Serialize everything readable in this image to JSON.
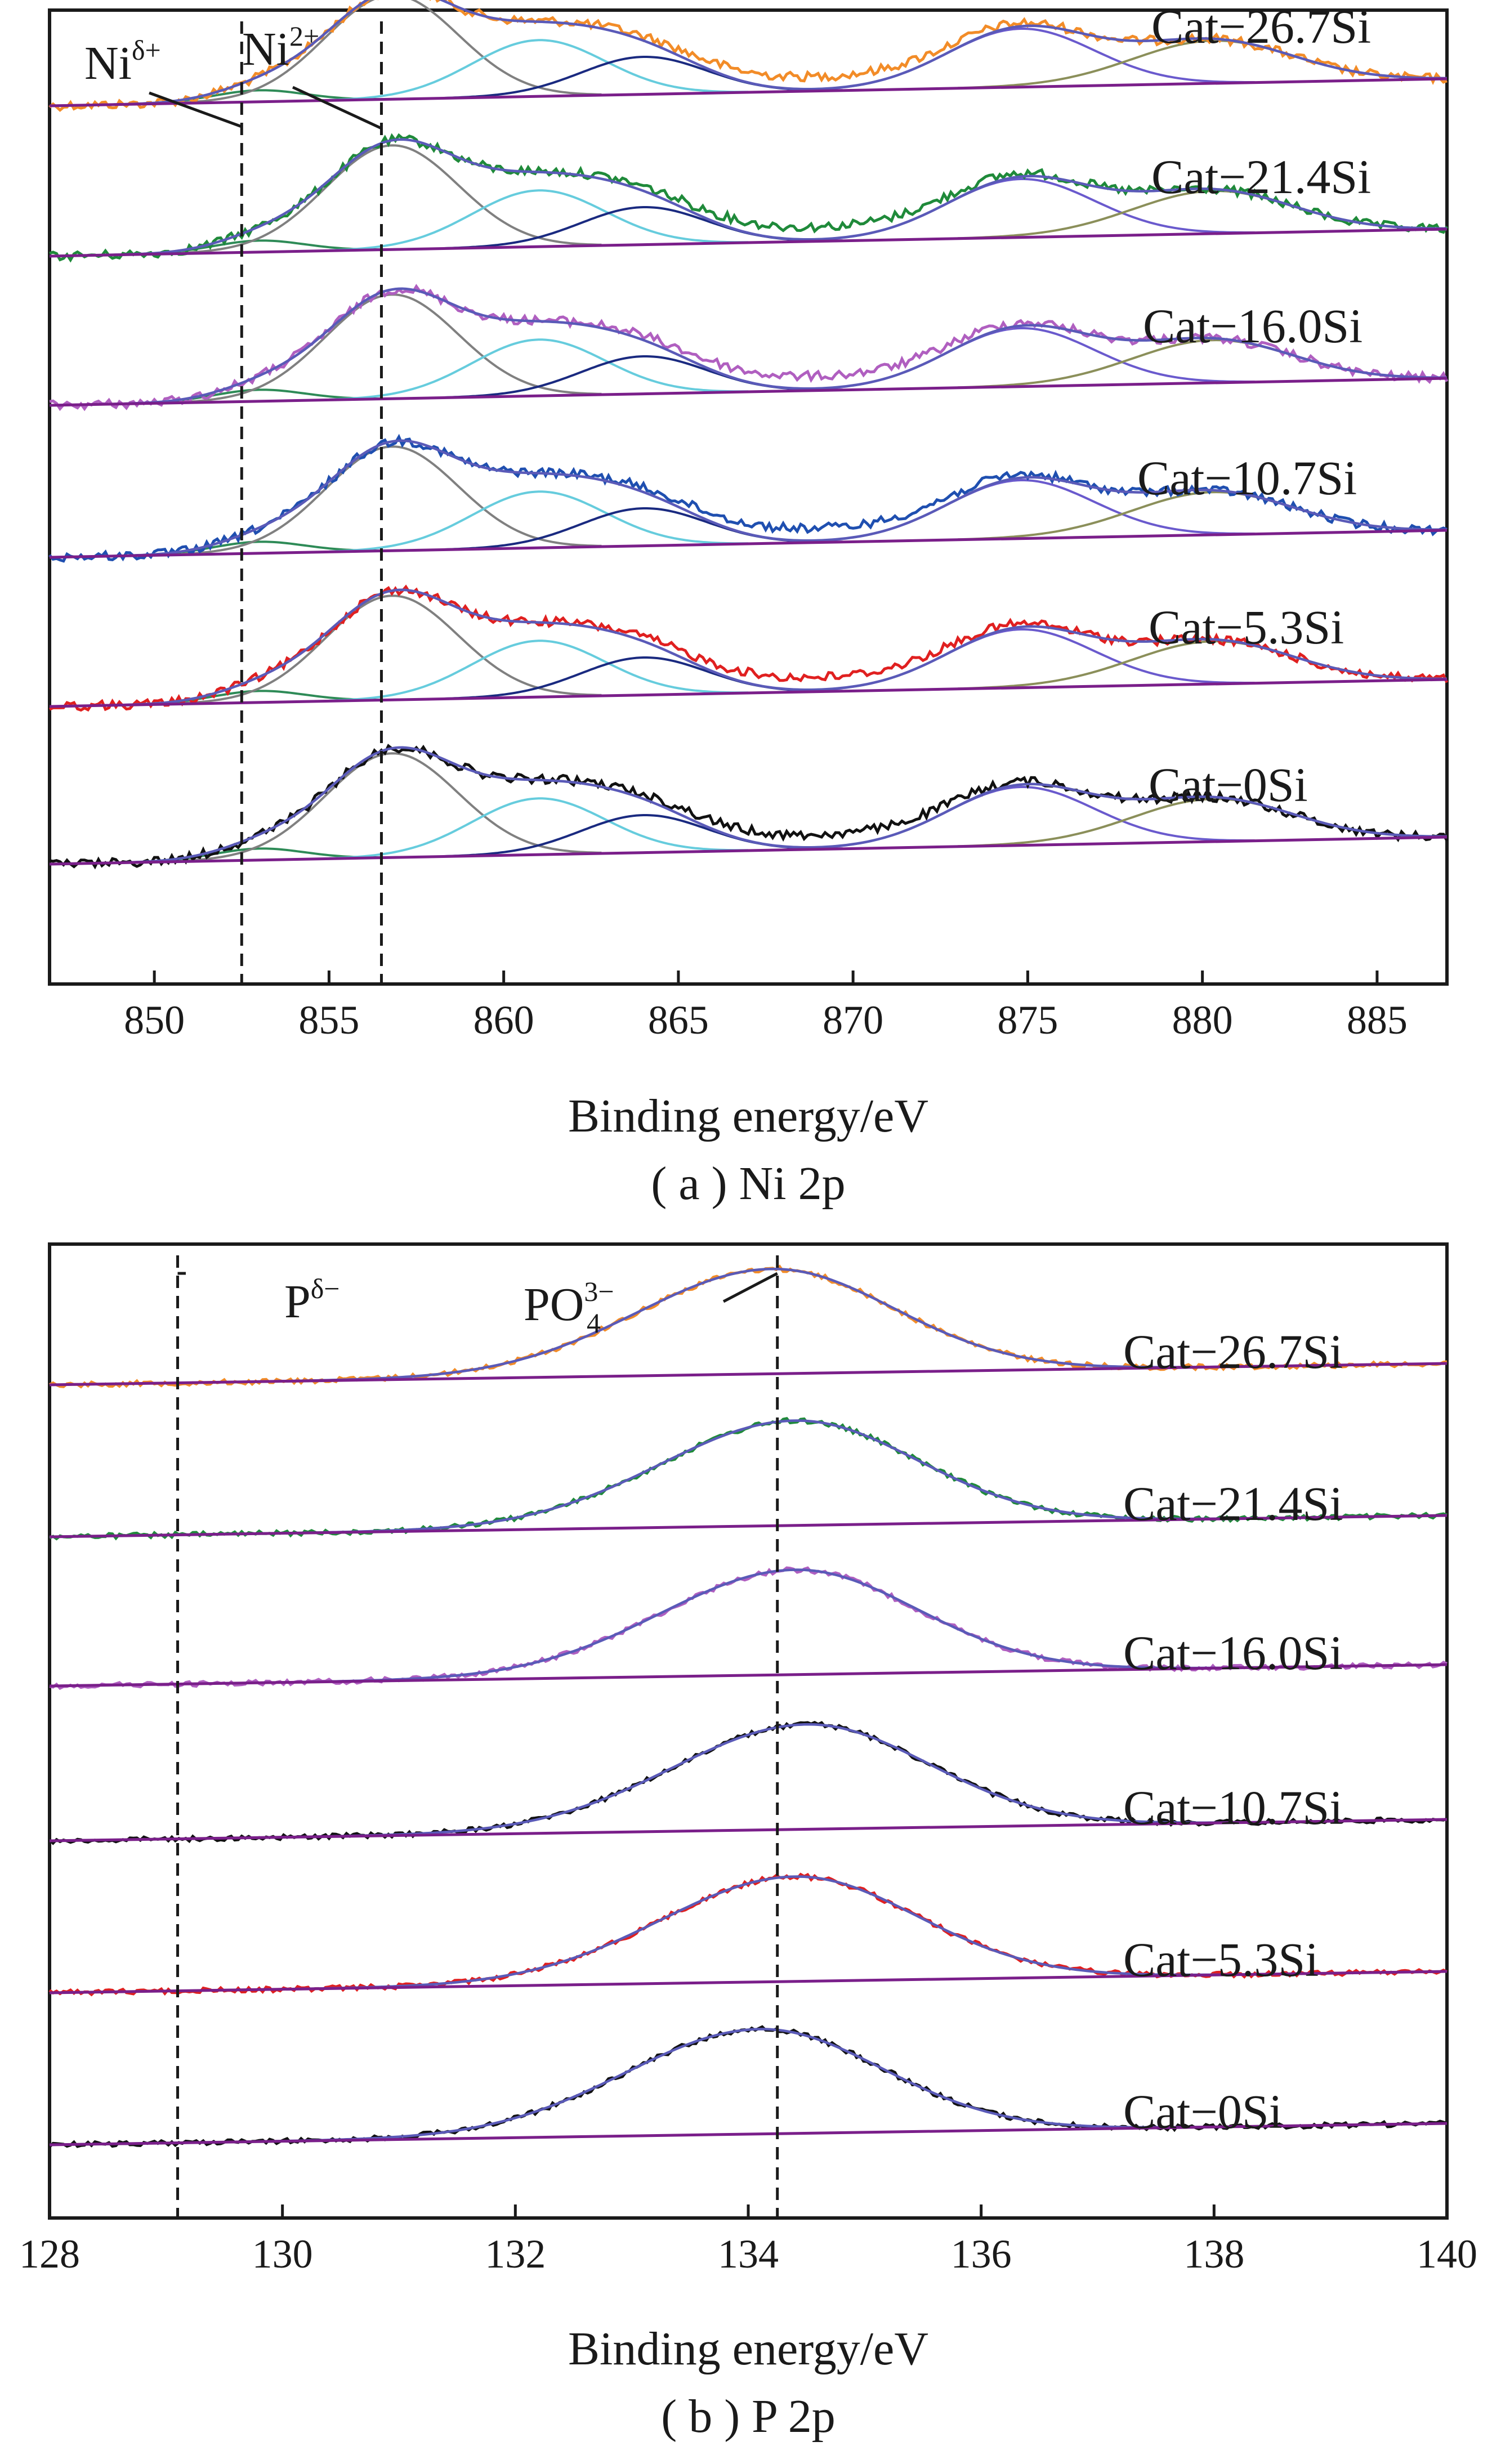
{
  "chart_data": [
    {
      "type": "line",
      "panel": "a",
      "caption": "( a ) Ni 2p",
      "xlabel": "Binding energy/eV",
      "ylabel": "",
      "xlim": [
        847,
        887
      ],
      "xticks": [
        850,
        855,
        860,
        865,
        870,
        875,
        880,
        885
      ],
      "grid": false,
      "legend": "none",
      "reference_lines": [
        {
          "x": 852.5,
          "label": "Niδ+",
          "label_base": "Ni",
          "label_sup": "δ+"
        },
        {
          "x": 856.5,
          "label": "Ni2+",
          "label_base": "Ni",
          "label_sup": "2+"
        }
      ],
      "component_peaks": [
        {
          "color": "#2e8b57",
          "center": 853.0,
          "rel_height": 0.11,
          "width": 1.3
        },
        {
          "color": "#808080",
          "center": 856.8,
          "rel_height": 1.0,
          "width": 1.9
        },
        {
          "color": "#66ccdd",
          "center": 861.0,
          "rel_height": 0.54,
          "width": 1.9
        },
        {
          "color": "#1a2a80",
          "center": 864.0,
          "rel_height": 0.36,
          "width": 1.8
        },
        {
          "color": "#6a5acd",
          "center": 874.8,
          "rel_height": 0.56,
          "width": 2.1
        },
        {
          "color": "#8b8f5a",
          "center": 880.3,
          "rel_height": 0.41,
          "width": 2.3
        }
      ],
      "series": [
        {
          "name": "Cat−26.7Si",
          "color": "#f28c28"
        },
        {
          "name": "Cat−21.4Si",
          "color": "#1f8a3a"
        },
        {
          "name": "Cat−16.0Si",
          "color": "#b05fc0"
        },
        {
          "name": "Cat−10.7Si",
          "color": "#1f4fb0"
        },
        {
          "name": "Cat−5.3Si",
          "color": "#e02020"
        },
        {
          "name": "Cat−0Si",
          "color": "#111111"
        }
      ],
      "fit_color": "#5a5ab8",
      "background_color": "#7a1f8a"
    },
    {
      "type": "line",
      "panel": "b",
      "caption": "( b ) P 2p",
      "xlabel": "Binding energy/eV",
      "ylabel": "",
      "xlim": [
        128,
        140
      ],
      "xticks": [
        128,
        130,
        132,
        134,
        136,
        138,
        140
      ],
      "grid": false,
      "legend": "none",
      "reference_lines": [
        {
          "x": 129.1,
          "label": "Pδ−",
          "label_base": "P",
          "label_sup": "δ−"
        },
        {
          "x": 134.25,
          "label": "PO43−",
          "label_base": "PO",
          "label_sub": "4",
          "label_sup": "3−"
        }
      ],
      "series": [
        {
          "name": "Cat−26.7Si",
          "color": "#f28c28",
          "peak_center": 134.2
        },
        {
          "name": "Cat−21.4Si",
          "color": "#1f8a3a",
          "peak_center": 134.4
        },
        {
          "name": "Cat−16.0Si",
          "color": "#b05fc0",
          "peak_center": 134.4
        },
        {
          "name": "Cat−10.7Si",
          "color": "#111111",
          "peak_center": 134.5
        },
        {
          "name": "Cat−5.3Si",
          "color": "#e02020",
          "peak_center": 134.4
        },
        {
          "name": "Cat−0Si",
          "color": "#111111",
          "peak_center": 134.1
        }
      ],
      "fit_color": "#5a5ab8",
      "background_color": "#7a1f8a"
    }
  ]
}
